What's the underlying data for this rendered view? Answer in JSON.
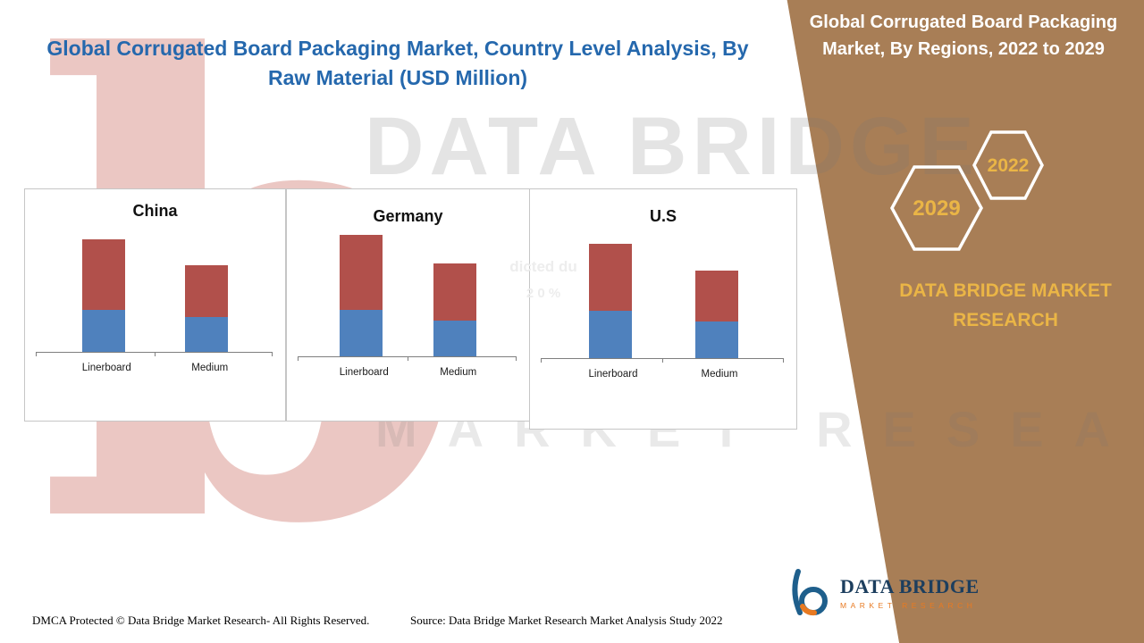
{
  "header": {
    "left_title": "Global Corrugated Board Packaging Market, Country Level Analysis, By Raw Material (USD Million)",
    "right_title": "Global Corrugated Board Packaging Market, By Regions, 2022 to 2029"
  },
  "side_panel": {
    "panel_color": "#a87e56",
    "accent_gold": "#eab546",
    "hexagons": [
      {
        "year": "2029"
      },
      {
        "year": "2022"
      }
    ],
    "brand_text": "DATA BRIDGE MARKET RESEARCH"
  },
  "watermark": {
    "big_letter": "b",
    "line1": "DATA BRIDGE",
    "line2": "MARKET RESEARCH"
  },
  "center_overlay_fragment": {
    "line1": "dicted du",
    "line2": "2 0 %"
  },
  "logo": {
    "name": "DATA BRIDGE",
    "tagline": "MARKET RESEARCH"
  },
  "footer": {
    "dmca": "DMCA Protected © Data Bridge Market Research- All Rights Reserved.",
    "source": "Source: Data Bridge Market Research Market Analysis Study 2022"
  },
  "chart_data": [
    {
      "type": "bar",
      "stacked": true,
      "title": "China",
      "categories": [
        "Linerboard",
        "Medium"
      ],
      "series": [
        {
          "name": "bottom-blue",
          "color": "#4f81bd",
          "values": [
            47,
            39
          ]
        },
        {
          "name": "top-red",
          "color": "#b1504b",
          "values": [
            79,
            58
          ]
        }
      ],
      "note": "no numeric axis shown; values are relative bar heights (USD Million implied)"
    },
    {
      "type": "bar",
      "stacked": true,
      "title": "Germany",
      "categories": [
        "Linerboard",
        "Medium"
      ],
      "series": [
        {
          "name": "bottom-blue",
          "color": "#4f81bd",
          "values": [
            52,
            40
          ]
        },
        {
          "name": "top-red",
          "color": "#b1504b",
          "values": [
            84,
            64
          ]
        }
      ],
      "note": "no numeric axis shown; values are relative bar heights (USD Million implied)"
    },
    {
      "type": "bar",
      "stacked": true,
      "title": "U.S",
      "categories": [
        "Linerboard",
        "Medium"
      ],
      "series": [
        {
          "name": "bottom-blue",
          "color": "#4f81bd",
          "values": [
            53,
            41
          ]
        },
        {
          "name": "top-red",
          "color": "#b1504b",
          "values": [
            75,
            57
          ]
        }
      ],
      "note": "no numeric axis shown; values are relative bar heights (USD Million implied)"
    }
  ]
}
